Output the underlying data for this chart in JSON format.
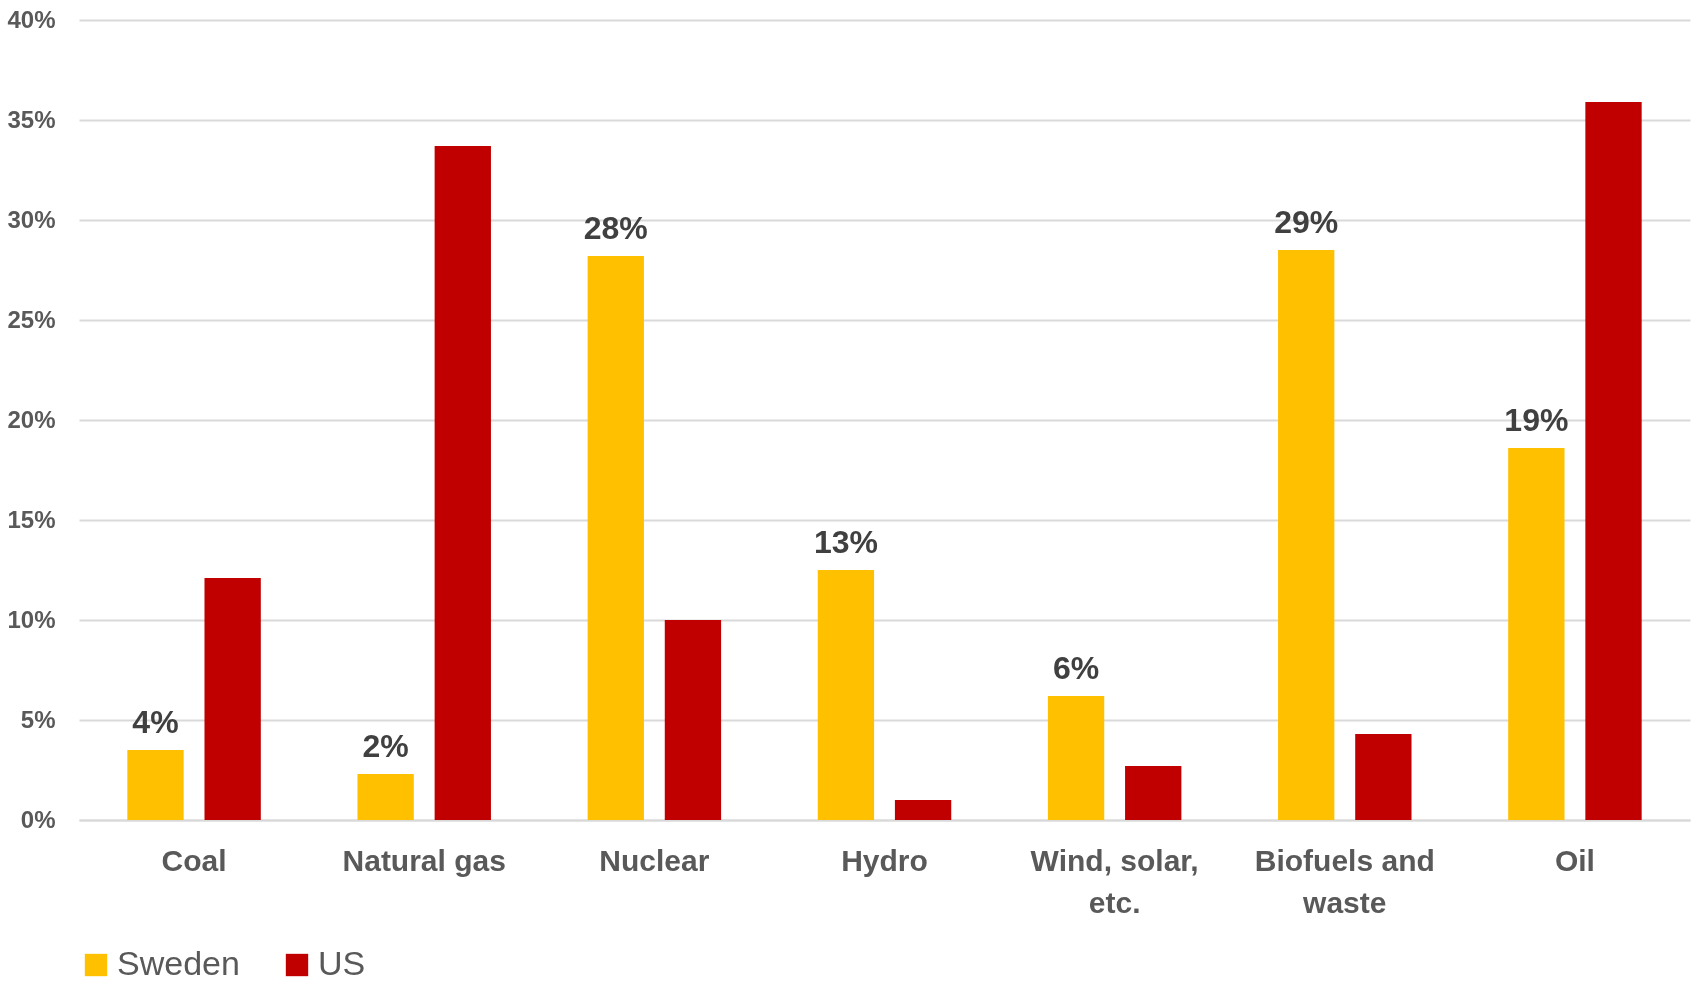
{
  "chart_data": {
    "type": "bar",
    "categories": [
      "Coal",
      "Natural gas",
      "Nuclear",
      "Hydro",
      "Wind, solar, etc.",
      "Biofuels and waste",
      "Oil"
    ],
    "series": [
      {
        "name": "Sweden",
        "color": "#ffc000",
        "values": [
          3.5,
          2.3,
          28.2,
          12.5,
          6.2,
          28.5,
          18.6
        ],
        "value_labels": [
          "4%",
          "2%",
          "28%",
          "13%",
          "6%",
          "29%",
          "19%"
        ]
      },
      {
        "name": "US",
        "color": "#c00000",
        "values": [
          12.1,
          33.7,
          10.0,
          1.0,
          2.7,
          4.3,
          35.9
        ]
      }
    ],
    "ylim": [
      0,
      40
    ],
    "yticks": [
      {
        "value": 0,
        "label": "0%"
      },
      {
        "value": 5,
        "label": "5%"
      },
      {
        "value": 10,
        "label": "10%"
      },
      {
        "value": 15,
        "label": "15%"
      },
      {
        "value": 20,
        "label": "20%"
      },
      {
        "value": 25,
        "label": "25%"
      },
      {
        "value": 30,
        "label": "30%"
      },
      {
        "value": 35,
        "label": "35%"
      },
      {
        "value": 40,
        "label": "40%"
      }
    ],
    "grid": "y",
    "legend": "bottom"
  }
}
